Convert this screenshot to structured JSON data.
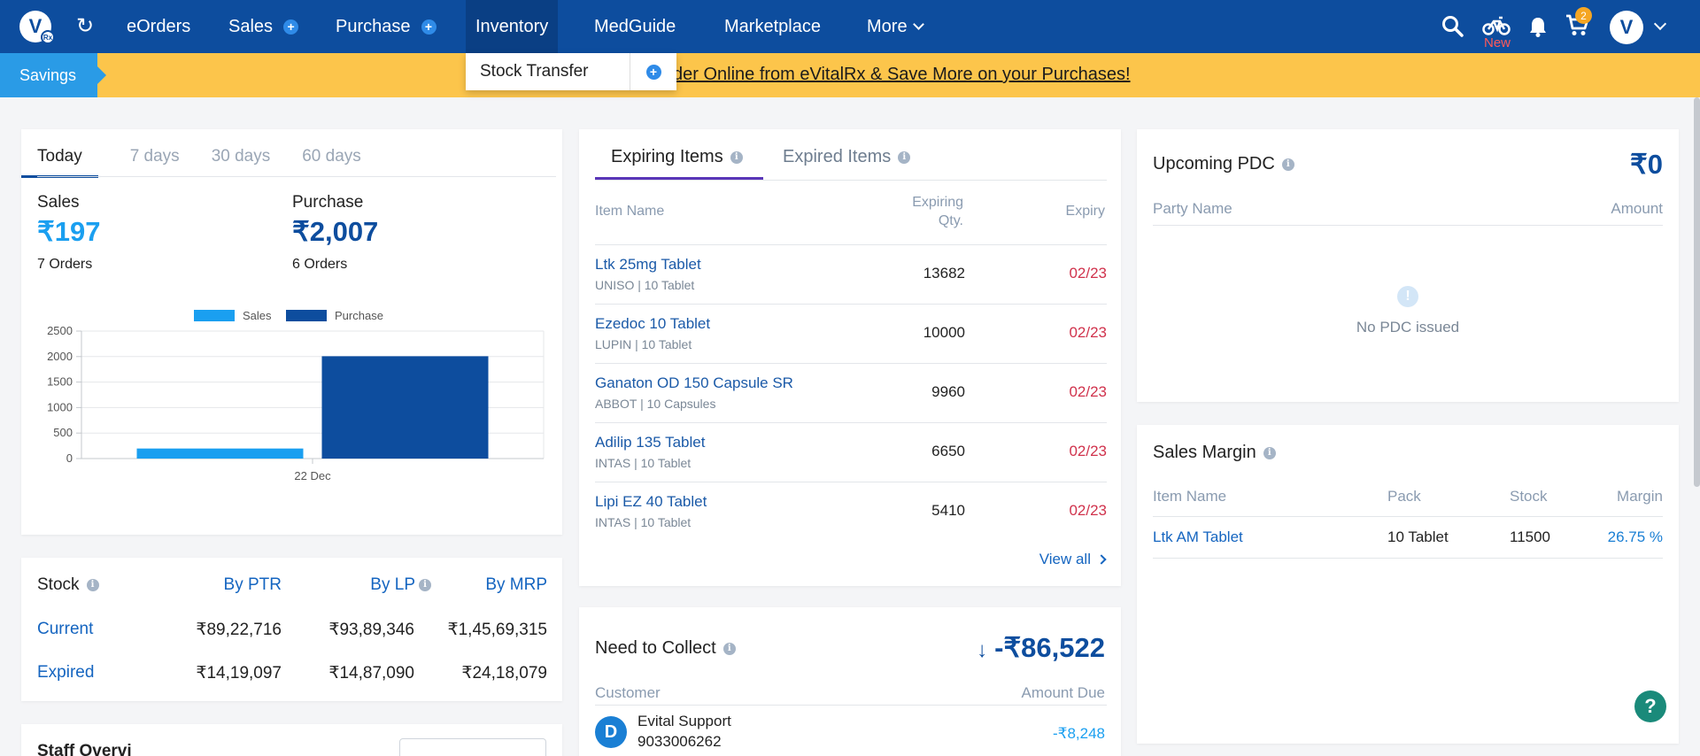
{
  "nav": {
    "items": [
      "eOrders",
      "Sales",
      "Purchase",
      "Inventory",
      "MedGuide",
      "Marketplace",
      "More"
    ],
    "new_label": "New",
    "cart_count": "2",
    "active": "Inventory"
  },
  "banner": {
    "tag": "Savings",
    "link": "der Online from eVitalRx & Save More on your Purchases!"
  },
  "dropdown": {
    "item": "Stock Transfer"
  },
  "overview": {
    "tabs": [
      "Today",
      "7 days",
      "30 days",
      "60 days"
    ],
    "active_tab": "Today",
    "sales_label": "Sales",
    "sales_value": "₹197",
    "sales_orders": "7 Orders",
    "purchase_label": "Purchase",
    "purchase_value": "₹2,007",
    "purchase_orders": "6 Orders"
  },
  "chart_data": {
    "type": "bar",
    "categories": [
      "22 Dec"
    ],
    "series": [
      {
        "name": "Sales",
        "values": [
          197
        ],
        "color": "#1a9ff0"
      },
      {
        "name": "Purchase",
        "values": [
          2007
        ],
        "color": "#0d4d9e"
      }
    ],
    "yticks": [
      "2500",
      "2000",
      "1500",
      "1000",
      "500",
      "0"
    ],
    "ylim": [
      0,
      2500
    ],
    "grid": true,
    "legend": "top"
  },
  "stock": {
    "title": "Stock",
    "headers": [
      "By PTR",
      "By LP",
      "By MRP"
    ],
    "rows": [
      {
        "label": "Current",
        "values": [
          "₹89,22,716",
          "₹93,89,346",
          "₹1,45,69,315"
        ]
      },
      {
        "label": "Expired",
        "values": [
          "₹14,19,097",
          "₹14,87,090",
          "₹24,18,079"
        ]
      }
    ]
  },
  "staff": {
    "title": "Staff Overvi"
  },
  "expiring": {
    "tabs": [
      "Expiring Items",
      "Expired Items"
    ],
    "headers": {
      "name": "Item Name",
      "qty_line1": "Expiring",
      "qty_line2": "Qty.",
      "expiry": "Expiry"
    },
    "rows": [
      {
        "name": "Ltk 25mg Tablet",
        "sub": "UNISO  |  10 Tablet",
        "qty": "13682",
        "expiry": "02/23"
      },
      {
        "name": "Ezedoc 10 Tablet",
        "sub": "LUPIN  |  10 Tablet",
        "qty": "10000",
        "expiry": "02/23"
      },
      {
        "name": "Ganaton OD 150 Capsule SR",
        "sub": "ABBOT  |  10 Capsules",
        "qty": "9960",
        "expiry": "02/23"
      },
      {
        "name": "Adilip 135 Tablet",
        "sub": "INTAS  |  10 Tablet",
        "qty": "6650",
        "expiry": "02/23"
      },
      {
        "name": "Lipi EZ 40 Tablet",
        "sub": "INTAS  |  10 Tablet",
        "qty": "5410",
        "expiry": "02/23"
      }
    ],
    "view_all": "View all"
  },
  "collect": {
    "title": "Need to Collect",
    "amount": "-₹86,522",
    "headers": [
      "Customer",
      "Amount Due"
    ],
    "rows": [
      {
        "initial": "D",
        "name": "Evital Support",
        "phone": "9033006262",
        "amount": "-₹8,248"
      }
    ]
  },
  "pdc": {
    "title": "Upcoming PDC",
    "amount": "₹0",
    "headers": [
      "Party Name",
      "Amount"
    ],
    "empty": "No PDC issued"
  },
  "margin": {
    "title": "Sales Margin",
    "headers": [
      "Item Name",
      "Pack",
      "Stock",
      "Margin"
    ],
    "rows": [
      {
        "name": "Ltk AM Tablet",
        "pack": "10 Tablet",
        "stock": "11500",
        "margin": "26.75 %"
      }
    ]
  },
  "help": "?"
}
